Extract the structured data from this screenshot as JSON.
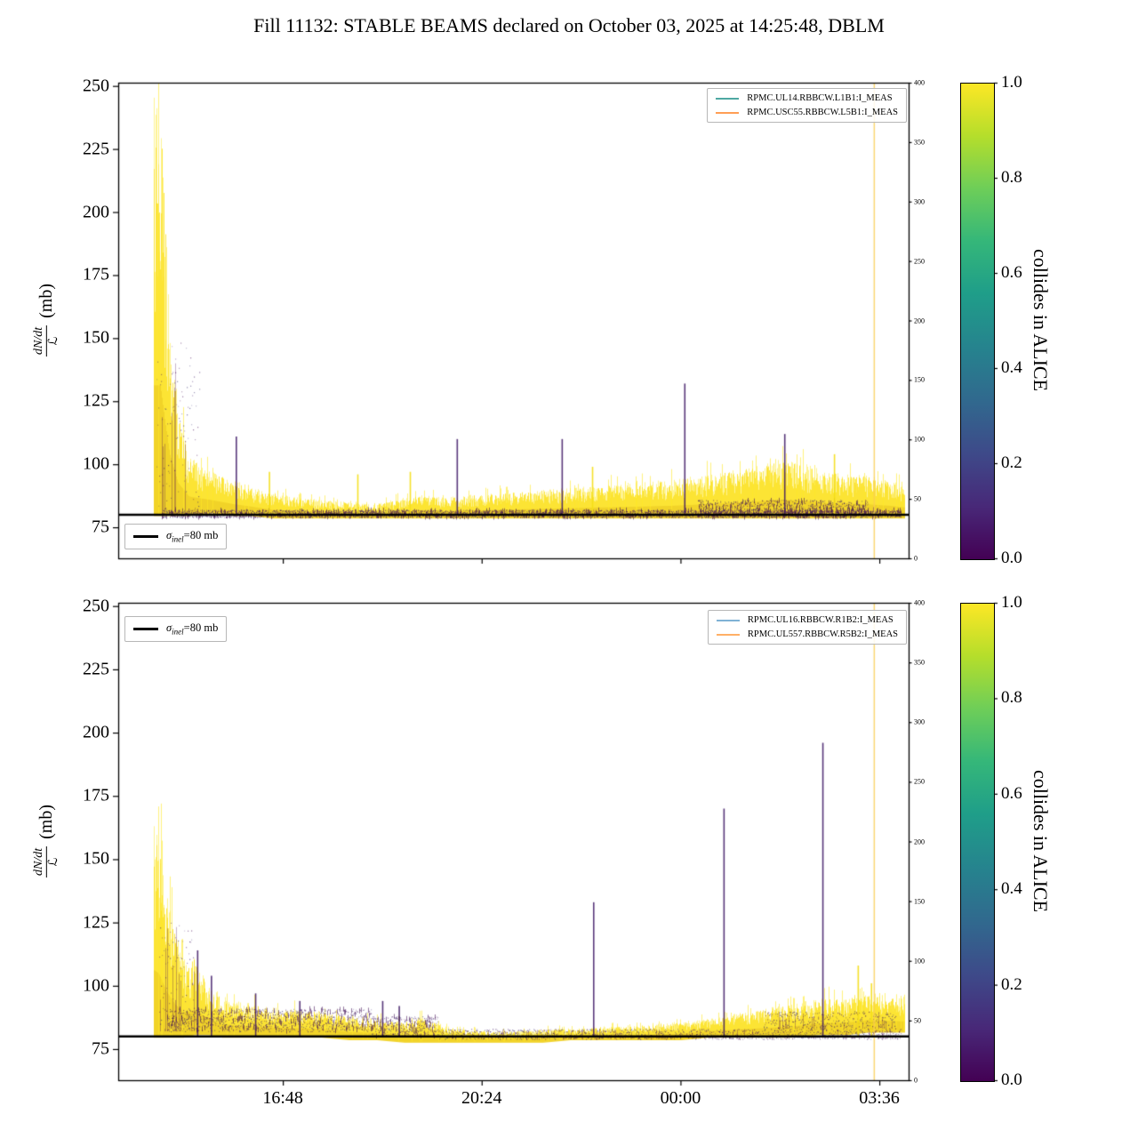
{
  "page_title": "Fill 11132: STABLE BEAMS declared on October 03, 2025 at 14:25:48, DBLM",
  "chart_data": [
    {
      "type": "scatter",
      "subplot": "beam1-left-detectors",
      "ylabel_parts": {
        "numerator": "dN/dt",
        "denominator": "ℒ",
        "unit": "(mb)"
      },
      "ylim": [
        62.7,
        251.3
      ],
      "y_ticks": [
        "250",
        "225",
        "200",
        "175",
        "150",
        "125",
        "100",
        "75"
      ],
      "x_domain_hours": [
        13.82,
        28.13
      ],
      "x_ticks": [
        {
          "hours": 16.8,
          "label": "16:48"
        },
        {
          "hours": 20.4,
          "label": "20:24"
        },
        {
          "hours": 24.0,
          "label": "00:00"
        },
        {
          "hours": 27.6,
          "label": "03:36"
        }
      ],
      "x_tick_labels_visible": false,
      "right_axis_ticks": [
        "400",
        "350",
        "300",
        "250",
        "200",
        "150",
        "100",
        "50",
        "0"
      ],
      "sigma_line": {
        "label_sigma": "σ",
        "label_sub": "inel",
        "label_rest": "=80 mb",
        "value_mb": 80
      },
      "legend": [
        {
          "label": "RPMC.UL14.RBBCW.L1B1:I_MEAS",
          "color": "#4ea8a2"
        },
        {
          "label": "RPMC.USC55.RBBCW.L5B1:I_MEAS",
          "color": "#ff9e54"
        }
      ],
      "colorbar": {
        "label": "collides in ALICE",
        "cmap": "viridis",
        "ticks": [
          "1.0",
          "0.8",
          "0.6",
          "0.4",
          "0.2",
          "0.0"
        ],
        "top_color": "#fde725",
        "bottom_color": "#440154"
      },
      "band_keypoints": [
        [
          14.45,
          80,
          251
        ],
        [
          14.58,
          80,
          251
        ],
        [
          14.66,
          80,
          205
        ],
        [
          14.75,
          80,
          160
        ],
        [
          14.9,
          80,
          122
        ],
        [
          15.1,
          80,
          104
        ],
        [
          15.5,
          81,
          97
        ],
        [
          15.9,
          80,
          94
        ],
        [
          16.2,
          80,
          91
        ],
        [
          16.6,
          79,
          89
        ],
        [
          17.0,
          79,
          87
        ],
        [
          17.5,
          79,
          86
        ],
        [
          18.0,
          79,
          85
        ],
        [
          18.4,
          79,
          84
        ],
        [
          18.8,
          79,
          86
        ],
        [
          19.2,
          79,
          88
        ],
        [
          19.7,
          79,
          87
        ],
        [
          20.2,
          79,
          88
        ],
        [
          20.8,
          79,
          89
        ],
        [
          21.4,
          79,
          90
        ],
        [
          22.0,
          79,
          91
        ],
        [
          22.6,
          79,
          92
        ],
        [
          23.2,
          79,
          93
        ],
        [
          23.8,
          79,
          94
        ],
        [
          24.4,
          79,
          96
        ],
        [
          24.9,
          79,
          98
        ],
        [
          25.4,
          79,
          100
        ],
        [
          25.8,
          79,
          102
        ],
        [
          26.2,
          79,
          101
        ],
        [
          26.6,
          79,
          98
        ],
        [
          27.0,
          79,
          97
        ],
        [
          27.4,
          79,
          96
        ],
        [
          27.8,
          79,
          94
        ],
        [
          28.05,
          79,
          92
        ]
      ],
      "purple_regions": [
        {
          "t0": 14.5,
          "t1": 15.3,
          "lo": 80,
          "hi": 150,
          "dense": false
        },
        {
          "t0": 14.6,
          "t1": 28.0,
          "lo": 79,
          "hi": 82,
          "dense": true
        },
        {
          "t0": 24.3,
          "t1": 27.4,
          "lo": 79,
          "hi": 86,
          "dense": true
        }
      ],
      "spikes": [
        {
          "hours": 15.95,
          "value": 111,
          "color": "dark"
        },
        {
          "hours": 16.55,
          "value": 97,
          "color": "yellow"
        },
        {
          "hours": 18.15,
          "value": 96,
          "color": "yellow"
        },
        {
          "hours": 19.1,
          "value": 97,
          "color": "yellow"
        },
        {
          "hours": 19.95,
          "value": 110,
          "color": "dark"
        },
        {
          "hours": 21.85,
          "value": 110,
          "color": "dark"
        },
        {
          "hours": 22.4,
          "value": 99,
          "color": "yellow"
        },
        {
          "hours": 24.07,
          "value": 132,
          "color": "dark"
        },
        {
          "hours": 25.88,
          "value": 112,
          "color": "dark"
        },
        {
          "hours": 26.78,
          "value": 104,
          "color": "yellow"
        }
      ],
      "event_vline": {
        "hours": 27.5,
        "color": "rgba(250,205,80,0.8)"
      }
    },
    {
      "type": "scatter",
      "subplot": "beam2-right-detectors",
      "ylabel_parts": {
        "numerator": "dN/dt",
        "denominator": "ℒ",
        "unit": "(mb)"
      },
      "ylim": [
        62.7,
        251.3
      ],
      "y_ticks": [
        "250",
        "225",
        "200",
        "175",
        "150",
        "125",
        "100",
        "75"
      ],
      "x_domain_hours": [
        13.82,
        28.13
      ],
      "x_ticks": [
        {
          "hours": 16.8,
          "label": "16:48"
        },
        {
          "hours": 20.4,
          "label": "20:24"
        },
        {
          "hours": 24.0,
          "label": "00:00"
        },
        {
          "hours": 27.6,
          "label": "03:36"
        }
      ],
      "x_tick_labels_visible": true,
      "right_axis_ticks": [
        "400",
        "350",
        "300",
        "250",
        "200",
        "150",
        "100",
        "50",
        "0"
      ],
      "sigma_line": {
        "label_sigma": "σ",
        "label_sub": "inel",
        "label_rest": "=80 mb",
        "value_mb": 80
      },
      "legend": [
        {
          "label": "RPMC.UL16.RBBCW.R1B2:I_MEAS",
          "color": "#7fb2d5"
        },
        {
          "label": "RPMC.UL557.RBBCW.R5B2:I_MEAS",
          "color": "#ffb066"
        }
      ],
      "colorbar": {
        "label": "collides in ALICE",
        "cmap": "viridis",
        "ticks": [
          "1.0",
          "0.8",
          "0.6",
          "0.4",
          "0.2",
          "0.0"
        ],
        "top_color": "#fde725",
        "bottom_color": "#440154"
      },
      "band_keypoints": [
        [
          14.45,
          80,
          168
        ],
        [
          14.55,
          80,
          163
        ],
        [
          14.7,
          80,
          138
        ],
        [
          14.85,
          80,
          122
        ],
        [
          15.0,
          80,
          112
        ],
        [
          15.2,
          81,
          112
        ],
        [
          15.45,
          81,
          101
        ],
        [
          15.7,
          80,
          96
        ],
        [
          16.0,
          80,
          94
        ],
        [
          16.5,
          80,
          92
        ],
        [
          17.0,
          80,
          91
        ],
        [
          17.5,
          80,
          90
        ],
        [
          18.0,
          79,
          88
        ],
        [
          18.5,
          79,
          87
        ],
        [
          19.0,
          78,
          86
        ],
        [
          19.3,
          78,
          88
        ],
        [
          19.6,
          78,
          85
        ],
        [
          20.0,
          78,
          83
        ],
        [
          20.5,
          78,
          82
        ],
        [
          21.0,
          78,
          82
        ],
        [
          21.5,
          78,
          83
        ],
        [
          22.0,
          79,
          83
        ],
        [
          22.5,
          79,
          84
        ],
        [
          23.0,
          79,
          84
        ],
        [
          23.5,
          79,
          85
        ],
        [
          24.0,
          79,
          86
        ],
        [
          24.5,
          80,
          87
        ],
        [
          25.0,
          80,
          89
        ],
        [
          25.5,
          80,
          91
        ],
        [
          26.0,
          80,
          93
        ],
        [
          26.5,
          81,
          95
        ],
        [
          27.0,
          81,
          96
        ],
        [
          27.4,
          82,
          97
        ],
        [
          27.7,
          82,
          96
        ],
        [
          28.05,
          82,
          95
        ]
      ],
      "purple_regions": [
        {
          "t0": 14.55,
          "t1": 15.2,
          "lo": 82,
          "hi": 125,
          "dense": false
        },
        {
          "t0": 14.7,
          "t1": 18.4,
          "lo": 82,
          "hi": 91,
          "dense": true
        },
        {
          "t0": 18.4,
          "t1": 19.6,
          "lo": 80,
          "hi": 88,
          "dense": true
        },
        {
          "t0": 19.6,
          "t1": 28.0,
          "lo": 79,
          "hi": 83,
          "dense": false
        },
        {
          "t0": 25.5,
          "t1": 27.9,
          "lo": 83,
          "hi": 90,
          "dense": false
        }
      ],
      "spikes": [
        {
          "hours": 15.25,
          "value": 114,
          "color": "dark"
        },
        {
          "hours": 15.5,
          "value": 104,
          "color": "dark"
        },
        {
          "hours": 16.3,
          "value": 97,
          "color": "dark"
        },
        {
          "hours": 17.1,
          "value": 94,
          "color": "dark"
        },
        {
          "hours": 18.6,
          "value": 94,
          "color": "dark"
        },
        {
          "hours": 18.9,
          "value": 92,
          "color": "dark"
        },
        {
          "hours": 22.42,
          "value": 133,
          "color": "dark"
        },
        {
          "hours": 24.78,
          "value": 170,
          "color": "dark"
        },
        {
          "hours": 26.57,
          "value": 196,
          "color": "dark"
        },
        {
          "hours": 27.21,
          "value": 108,
          "color": "yellow"
        },
        {
          "hours": 27.45,
          "value": 101,
          "color": "yellow"
        }
      ],
      "event_vline": {
        "hours": 27.5,
        "color": "rgba(250,205,80,0.8)"
      }
    }
  ]
}
